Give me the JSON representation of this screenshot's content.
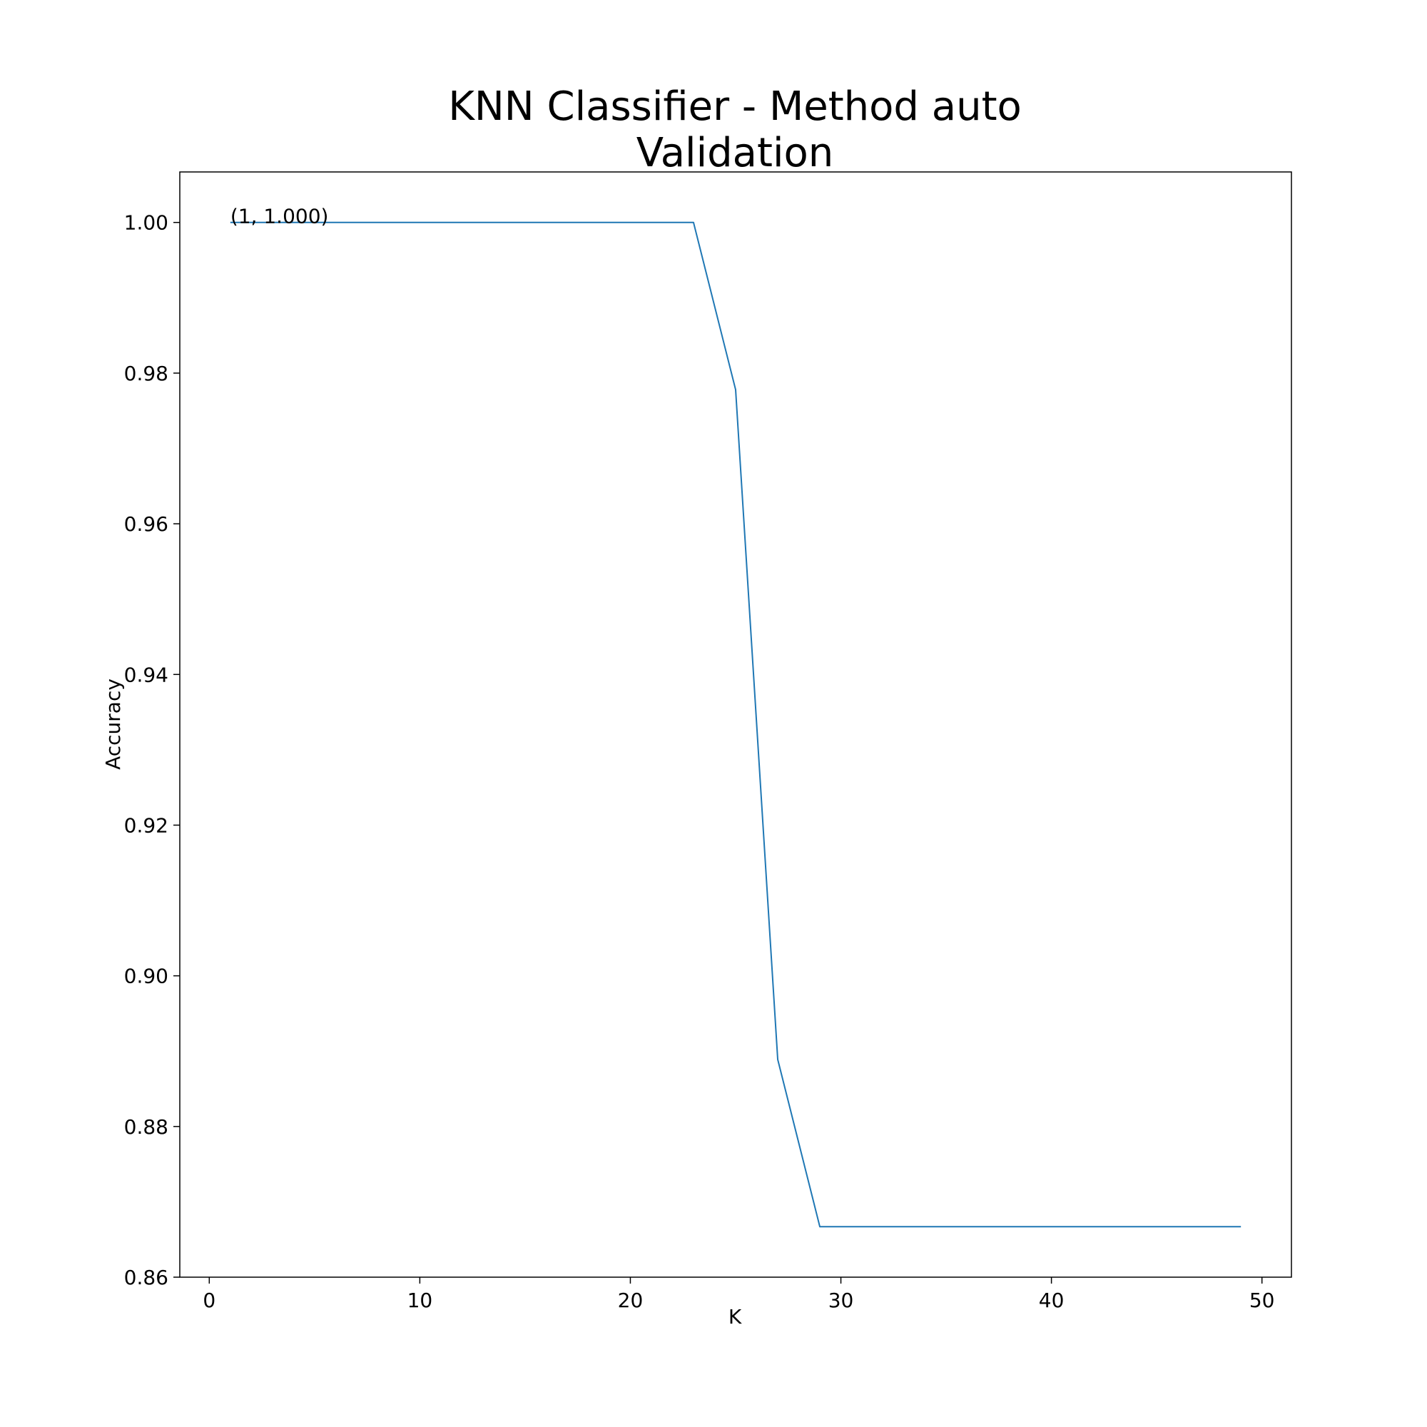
{
  "chart_data": {
    "type": "line",
    "title_line1": "KNN Classifier - Method auto",
    "title_line2": "Validation",
    "xlabel": "K",
    "ylabel": "Accuracy",
    "xlim": [
      -1.4,
      51.4
    ],
    "ylim": [
      0.86,
      1.0067
    ],
    "xticks": [
      0,
      10,
      20,
      30,
      40,
      50
    ],
    "xtick_labels": [
      "0",
      "10",
      "20",
      "30",
      "40",
      "50"
    ],
    "yticks": [
      0.86,
      0.88,
      0.9,
      0.92,
      0.94,
      0.96,
      0.98,
      1.0
    ],
    "ytick_labels": [
      "0.86",
      "0.88",
      "0.90",
      "0.92",
      "0.94",
      "0.96",
      "0.98",
      "1.00"
    ],
    "grid": false,
    "series": [
      {
        "color": "#1f77b4",
        "x": [
          1,
          3,
          5,
          7,
          9,
          11,
          13,
          15,
          17,
          19,
          21,
          23,
          25,
          27,
          29,
          31,
          33,
          35,
          37,
          39,
          41,
          43,
          45,
          47,
          49
        ],
        "y": [
          1.0,
          1.0,
          1.0,
          1.0,
          1.0,
          1.0,
          1.0,
          1.0,
          1.0,
          1.0,
          1.0,
          1.0,
          0.9778,
          0.8889,
          0.8667,
          0.8667,
          0.8667,
          0.8667,
          0.8667,
          0.8667,
          0.8667,
          0.8667,
          0.8667,
          0.8667,
          0.8667
        ]
      }
    ],
    "annotations": [
      {
        "text": "(1, 1.000)",
        "x": 1,
        "y": 1.0
      }
    ]
  }
}
